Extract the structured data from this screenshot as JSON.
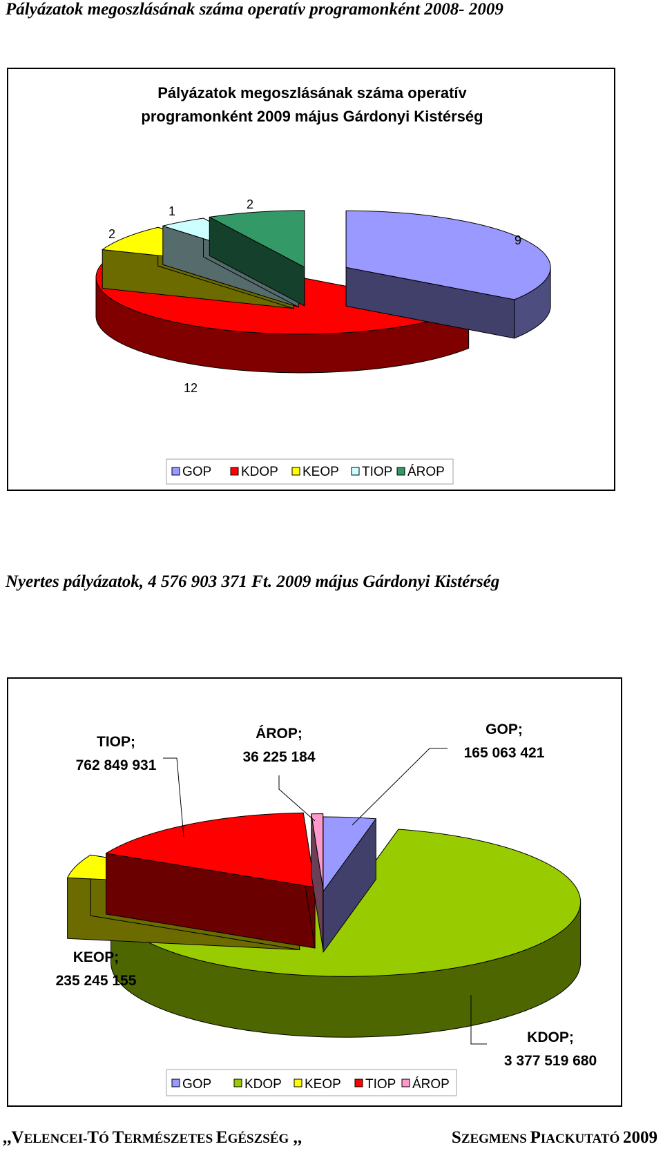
{
  "headings": {
    "first": "Pályázatok megoszlásának száma operatív programonként 2008- 2009",
    "second": "Nyertes pályázatok, 4 576 903 371 Ft.  2009 május Gárdonyi Kistérség"
  },
  "footer": {
    "left_parts": [
      ",,V",
      "ELENCEI",
      "-",
      "T",
      "Ó ",
      "T",
      "ERMÉSZETES ",
      "E",
      "GÉSZSÉG",
      " ,,"
    ],
    "right_parts": [
      "S",
      "ZEGMENS ",
      "P",
      "IACKUTATÓ ",
      "2009"
    ]
  },
  "colors": {
    "GOP": "#9999ff",
    "KDOP": "#ff0000",
    "KEOP": "#ffff00",
    "TIOP": "#ccffff",
    "AROP_chart1": "#339966",
    "KDOP_chart2": "#99cc00",
    "TIOP_chart2": "#ff0000",
    "AROP_chart2": "#ff99cc"
  },
  "chart_data": [
    {
      "type": "pie",
      "title_lines": [
        "Pályázatok megoszlásának száma operatív",
        "programonként 2009 május Gárdonyi Kistérség"
      ],
      "categories": [
        "GOP",
        "KDOP",
        "KEOP",
        "TIOP",
        "ÁROP"
      ],
      "values": [
        9,
        12,
        2,
        1,
        2
      ],
      "data_labels": [
        "9",
        "12",
        "2",
        "1",
        "2"
      ],
      "legend": [
        "GOP",
        "KDOP",
        "KEOP",
        "TIOP",
        "ÁROP"
      ],
      "legend_position": "bottom",
      "style": "3d-exploded"
    },
    {
      "type": "pie",
      "title": "",
      "categories": [
        "GOP",
        "KDOP",
        "KEOP",
        "TIOP",
        "ÁROP"
      ],
      "values": [
        165063421,
        3377519680,
        235245155,
        762849931,
        36225184
      ],
      "data_labels": [
        [
          "GOP;",
          "165 063 421"
        ],
        [
          "KDOP;",
          "3 377 519 680"
        ],
        [
          "KEOP;",
          "235 245 155"
        ],
        [
          "TIOP;",
          "762 849 931"
        ],
        [
          "ÁROP;",
          "36 225 184"
        ]
      ],
      "legend": [
        "GOP",
        "KDOP",
        "KEOP",
        "TIOP",
        "ÁROP"
      ],
      "legend_position": "bottom",
      "style": "3d-exploded"
    }
  ]
}
